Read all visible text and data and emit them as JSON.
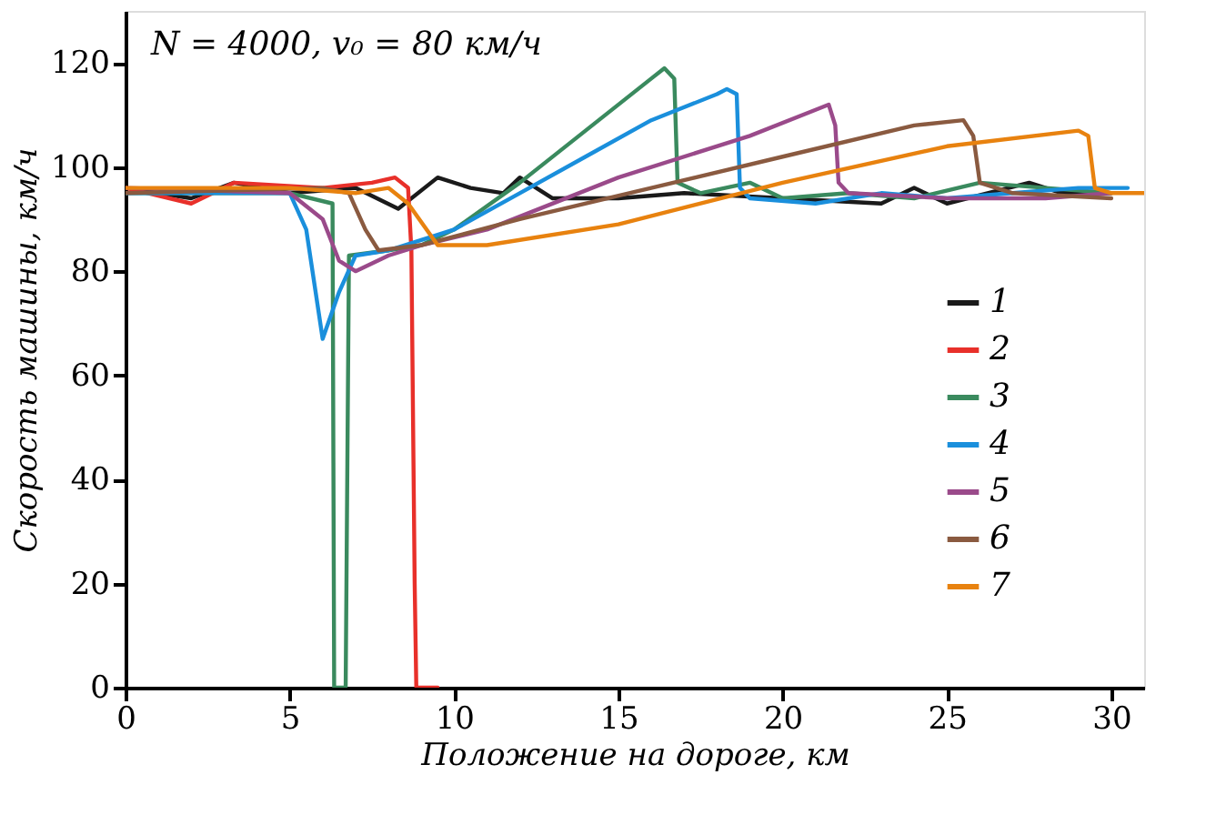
{
  "chart_data": {
    "type": "line",
    "title": "N = 4000,  v₀ = 80 км/ч",
    "xlabel": "Положение на дороге, км",
    "ylabel": "Скорость машины, км/ч",
    "xlim": [
      0,
      31
    ],
    "xticks": [
      0,
      5,
      10,
      15,
      20,
      25,
      30
    ],
    "ylim": [
      0,
      130
    ],
    "yticks": [
      0,
      20,
      40,
      60,
      80,
      100,
      120
    ],
    "grid": false,
    "legend": "right",
    "marker": "none",
    "line_style": "solid",
    "series": [
      {
        "name": "1",
        "color": "#1a1a1a",
        "x": [
          0,
          2,
          3.3,
          5,
          7,
          8.3,
          9.5,
          10.5,
          11.5,
          12,
          13,
          15,
          17,
          20,
          23,
          24,
          25,
          27.5,
          28.5,
          30
        ],
        "values": [
          96,
          94,
          97,
          95,
          96,
          92,
          98,
          96,
          95,
          98,
          94,
          94,
          95,
          94,
          93,
          96,
          93,
          97,
          95,
          95
        ]
      },
      {
        "name": "2",
        "color": "#e8302a",
        "x": [
          0,
          2,
          3.3,
          6,
          7.5,
          8.2,
          8.6,
          8.7,
          8.8,
          8.85,
          9.5
        ],
        "values": [
          96,
          93,
          97,
          96,
          97,
          98,
          96,
          84,
          20,
          0,
          0
        ]
      },
      {
        "name": "3",
        "color": "#3a8a5e",
        "x": [
          0,
          5,
          6.3,
          6.35,
          6.7,
          6.8,
          8,
          9,
          10,
          12,
          14,
          16,
          16.4,
          16.7,
          16.8,
          17.5,
          19,
          20,
          22,
          24,
          26,
          28,
          30
        ],
        "values": [
          95,
          95,
          93,
          0,
          0,
          83,
          84,
          85,
          88,
          97,
          107,
          117,
          119,
          117,
          97,
          95,
          97,
          94,
          95,
          94,
          97,
          96,
          95
        ]
      },
      {
        "name": "4",
        "color": "#1a8fdc",
        "x": [
          0,
          5,
          5.5,
          6,
          6.5,
          7,
          8,
          9,
          10,
          12,
          14,
          16,
          18,
          18.3,
          18.6,
          18.7,
          19,
          21,
          23,
          25,
          27,
          29,
          30.5
        ],
        "values": [
          95,
          95,
          88,
          67,
          76,
          83,
          84,
          86,
          88,
          95,
          102,
          109,
          114,
          115,
          114,
          96,
          94,
          93,
          95,
          94,
          95,
          96,
          96
        ]
      },
      {
        "name": "5",
        "color": "#9a4a8a",
        "x": [
          0,
          5,
          6,
          6.5,
          7,
          8,
          9,
          11,
          15,
          19,
          21,
          21.4,
          21.6,
          21.7,
          22,
          25,
          28,
          30
        ],
        "values": [
          96,
          95,
          90,
          82,
          80,
          83,
          85,
          88,
          98,
          106,
          111,
          112,
          108,
          97,
          95,
          94,
          94,
          95
        ]
      },
      {
        "name": "6",
        "color": "#8a5a40",
        "x": [
          0,
          6,
          6.8,
          7.3,
          7.7,
          9,
          12,
          16,
          20,
          24,
          25.5,
          25.8,
          26,
          27,
          30
        ],
        "values": [
          95,
          96,
          95,
          88,
          84,
          85,
          90,
          96,
          102,
          108,
          109,
          106,
          97,
          95,
          94
        ]
      },
      {
        "name": "7",
        "color": "#e8820f",
        "x": [
          0,
          5,
          7,
          8,
          8.6,
          9.5,
          11,
          15,
          20,
          25,
          29,
          29.3,
          29.5,
          30,
          31
        ],
        "values": [
          96,
          96,
          95,
          96,
          93,
          85,
          85,
          89,
          97,
          104,
          107,
          106,
          96,
          95,
          95
        ]
      }
    ]
  }
}
